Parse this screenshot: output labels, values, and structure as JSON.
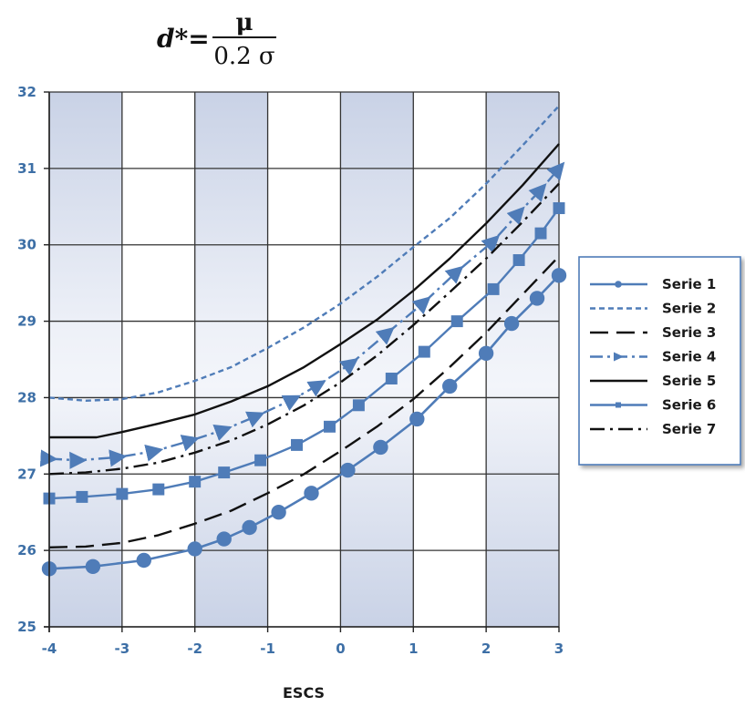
{
  "formula": {
    "lhs": "d*=",
    "numerator": "μ",
    "denominator": "0.2 σ"
  },
  "chart_data": {
    "type": "line",
    "xlabel": "ESCS",
    "ylabel": "",
    "xlim": [
      -4,
      3
    ],
    "ylim": [
      25,
      32
    ],
    "x_ticks": [
      "-4",
      "-3",
      "-2",
      "-1",
      "0",
      "1",
      "2",
      "3"
    ],
    "y_ticks": [
      "25",
      "26",
      "27",
      "28",
      "29",
      "30",
      "31",
      "32"
    ],
    "grid": true,
    "shaded_columns": [
      [
        -4,
        -3
      ],
      [
        -2,
        -1
      ],
      [
        0,
        1
      ],
      [
        2,
        3
      ]
    ],
    "legend_position": "right",
    "series": [
      {
        "name": "Serie 1",
        "color": "#4f7cb8",
        "style": "solid-dot",
        "points": [
          [
            -4,
            25.76
          ],
          [
            -3.4,
            25.79
          ],
          [
            -2.7,
            25.87
          ],
          [
            -2,
            26.02
          ],
          [
            -1.6,
            26.15
          ],
          [
            -1.25,
            26.3
          ],
          [
            -0.85,
            26.5
          ],
          [
            -0.4,
            26.75
          ],
          [
            0.1,
            27.05
          ],
          [
            0.55,
            27.35
          ],
          [
            1.05,
            27.72
          ],
          [
            1.5,
            28.15
          ],
          [
            2,
            28.58
          ],
          [
            2.35,
            28.97
          ],
          [
            2.7,
            29.3
          ],
          [
            3,
            29.6
          ]
        ]
      },
      {
        "name": "Serie 2",
        "color": "#4f7cb8",
        "style": "dotted",
        "points": [
          [
            -4,
            28.0
          ],
          [
            -3.5,
            27.96
          ],
          [
            -3,
            27.98
          ],
          [
            -2.5,
            28.07
          ],
          [
            -2,
            28.22
          ],
          [
            -1.5,
            28.4
          ],
          [
            -1,
            28.65
          ],
          [
            -0.5,
            28.92
          ],
          [
            0,
            29.23
          ],
          [
            0.5,
            29.58
          ],
          [
            1,
            29.97
          ],
          [
            1.5,
            30.35
          ],
          [
            2,
            30.8
          ],
          [
            2.5,
            31.3
          ],
          [
            3,
            31.82
          ]
        ]
      },
      {
        "name": "Serie 3",
        "color": "#111111",
        "style": "long-dash",
        "points": [
          [
            -4,
            26.04
          ],
          [
            -3.5,
            26.05
          ],
          [
            -3,
            26.1
          ],
          [
            -2.5,
            26.2
          ],
          [
            -2,
            26.35
          ],
          [
            -1.5,
            26.52
          ],
          [
            -1,
            26.75
          ],
          [
            -0.5,
            27.0
          ],
          [
            0,
            27.3
          ],
          [
            0.5,
            27.62
          ],
          [
            1,
            27.98
          ],
          [
            1.5,
            28.4
          ],
          [
            2,
            28.85
          ],
          [
            2.5,
            29.35
          ],
          [
            3,
            29.85
          ]
        ]
      },
      {
        "name": "Serie 4",
        "color": "#4f7cb8",
        "style": "dash-triangle",
        "points": [
          [
            -4,
            27.2
          ],
          [
            -3.6,
            27.18
          ],
          [
            -3.05,
            27.22
          ],
          [
            -2.55,
            27.3
          ],
          [
            -2.05,
            27.44
          ],
          [
            -1.6,
            27.58
          ],
          [
            -1.15,
            27.76
          ],
          [
            -0.65,
            27.98
          ],
          [
            -0.3,
            28.17
          ],
          [
            0.15,
            28.45
          ],
          [
            0.65,
            28.85
          ],
          [
            1.15,
            29.25
          ],
          [
            1.6,
            29.65
          ],
          [
            2.1,
            30.05
          ],
          [
            2.45,
            30.42
          ],
          [
            2.75,
            30.72
          ],
          [
            3,
            31.0
          ]
        ]
      },
      {
        "name": "Serie 5",
        "color": "#111111",
        "style": "solid",
        "points": [
          [
            -4,
            27.48
          ],
          [
            -3.35,
            27.48
          ],
          [
            -3,
            27.55
          ],
          [
            -2.5,
            27.66
          ],
          [
            -2,
            27.78
          ],
          [
            -1.5,
            27.95
          ],
          [
            -1,
            28.15
          ],
          [
            -0.5,
            28.4
          ],
          [
            0,
            28.7
          ],
          [
            0.5,
            29.02
          ],
          [
            1,
            29.4
          ],
          [
            1.5,
            29.82
          ],
          [
            2,
            30.28
          ],
          [
            2.5,
            30.78
          ],
          [
            3,
            31.32
          ]
        ]
      },
      {
        "name": "Serie 6",
        "color": "#4f7cb8",
        "style": "solid-square",
        "points": [
          [
            -4,
            26.68
          ],
          [
            -3.55,
            26.7
          ],
          [
            -3,
            26.74
          ],
          [
            -2.5,
            26.8
          ],
          [
            -2,
            26.9
          ],
          [
            -1.6,
            27.02
          ],
          [
            -1.1,
            27.18
          ],
          [
            -0.6,
            27.38
          ],
          [
            -0.15,
            27.62
          ],
          [
            0.25,
            27.9
          ],
          [
            0.7,
            28.25
          ],
          [
            1.15,
            28.6
          ],
          [
            1.6,
            29.0
          ],
          [
            2.1,
            29.42
          ],
          [
            2.45,
            29.8
          ],
          [
            2.75,
            30.15
          ],
          [
            3,
            30.48
          ]
        ]
      },
      {
        "name": "Serie 7",
        "color": "#111111",
        "style": "dash-dot",
        "points": [
          [
            -4,
            27.0
          ],
          [
            -3.5,
            27.02
          ],
          [
            -3,
            27.07
          ],
          [
            -2.5,
            27.15
          ],
          [
            -2,
            27.28
          ],
          [
            -1.5,
            27.44
          ],
          [
            -1,
            27.65
          ],
          [
            -0.5,
            27.9
          ],
          [
            0,
            28.2
          ],
          [
            0.5,
            28.55
          ],
          [
            1,
            28.95
          ],
          [
            1.5,
            29.38
          ],
          [
            2,
            29.82
          ],
          [
            2.5,
            30.3
          ],
          [
            3,
            30.8
          ]
        ]
      }
    ]
  }
}
